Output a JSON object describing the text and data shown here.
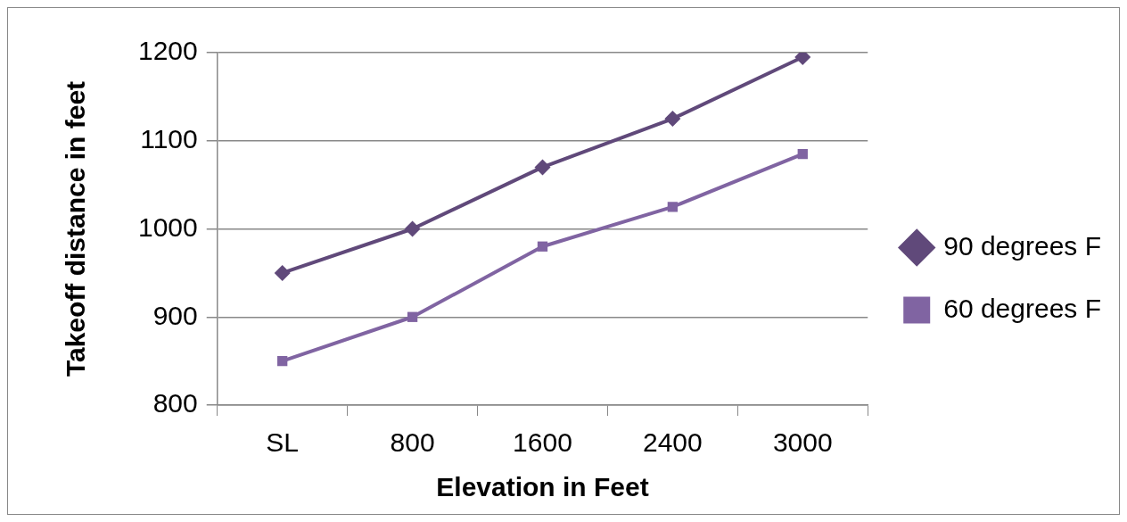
{
  "chart_data": {
    "type": "line",
    "xlabel": "Elevation in Feet",
    "ylabel": "Takeoff distance in feet",
    "categories": [
      "SL",
      "800",
      "1600",
      "2400",
      "3000"
    ],
    "series": [
      {
        "name": "90 degrees F",
        "color": "#60497a",
        "marker": "diamond",
        "values": [
          950,
          1000,
          1070,
          1125,
          1195
        ]
      },
      {
        "name": "60 degrees F",
        "color": "#8064a2",
        "marker": "square",
        "values": [
          850,
          900,
          980,
          1025,
          1085
        ]
      }
    ],
    "ylim": [
      800,
      1200
    ],
    "yticks": [
      800,
      900,
      1000,
      1100,
      1200
    ],
    "grid": "y",
    "legend": "right",
    "line_style": "solid"
  }
}
